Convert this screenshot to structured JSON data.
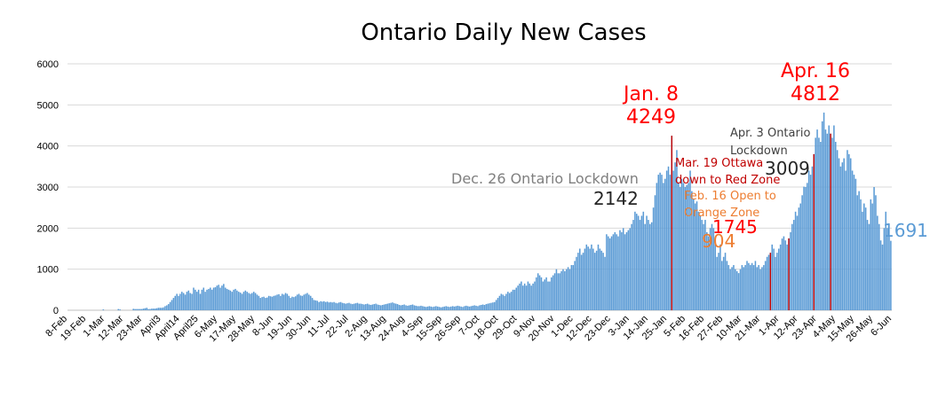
{
  "chart_data": {
    "type": "bar",
    "title": "Ontario Daily New Cases",
    "xlabel": "",
    "ylabel": "",
    "ylim": [
      0,
      6000
    ],
    "yticks": [
      0,
      1000,
      2000,
      3000,
      4000,
      5000,
      6000
    ],
    "grid": true,
    "legend": "none",
    "x_start": "8-Feb",
    "x_end": "6-Jun",
    "xtick_labels": [
      "8-Feb",
      "19-Feb",
      "1-Mar",
      "12-Mar",
      "23-Mar",
      "April3",
      "April14",
      "April25",
      "6-May",
      "17-May",
      "28-May",
      "8-Jun",
      "19-Jun",
      "30-Jun",
      "11-Jul",
      "22-Jul",
      "2-Aug",
      "13-Aug",
      "24-Aug",
      "4-Sep",
      "15-Sep",
      "26-Sep",
      "7-Oct",
      "18-Oct",
      "29-Oct",
      "9-Nov",
      "20-Nov",
      "1-Dec",
      "12-Dec",
      "23-Dec",
      "3-Jan",
      "14-Jan",
      "25-Jan",
      "5-Feb",
      "16-Feb",
      "27-Feb",
      "10-Mar",
      "21-Mar",
      "1-Apr",
      "12-Apr",
      "23-Apr",
      "4-May",
      "15-May",
      "26-May",
      "6-Jun"
    ],
    "series": [
      {
        "color": "#5b9bd5",
        "values": [
          0,
          0,
          0,
          0,
          0,
          0,
          0,
          0,
          0,
          0,
          0,
          0,
          0,
          0,
          0,
          0,
          0,
          0,
          0,
          0,
          0,
          20,
          0,
          0,
          0,
          0,
          0,
          0,
          0,
          0,
          30,
          20,
          0,
          0,
          0,
          0,
          0,
          0,
          0,
          35,
          30,
          30,
          30,
          30,
          30,
          40,
          50,
          60,
          30,
          30,
          40,
          40,
          40,
          50,
          60,
          60,
          60,
          70,
          100,
          120,
          150,
          200,
          250,
          300,
          350,
          400,
          350,
          400,
          450,
          420,
          380,
          450,
          480,
          420,
          400,
          550,
          500,
          450,
          500,
          400,
          500,
          550,
          450,
          500,
          520,
          550,
          500,
          550,
          560,
          600,
          620,
          550,
          600,
          640,
          550,
          520,
          500,
          480,
          450,
          500,
          520,
          480,
          450,
          430,
          400,
          450,
          480,
          450,
          420,
          400,
          420,
          450,
          420,
          380,
          350,
          300,
          320,
          330,
          300,
          310,
          350,
          340,
          330,
          350,
          360,
          380,
          390,
          350,
          400,
          380,
          420,
          400,
          350,
          300,
          330,
          320,
          340,
          380,
          400,
          360,
          350,
          380,
          400,
          420,
          380,
          350,
          300,
          250,
          240,
          230,
          200,
          220,
          210,
          220,
          200,
          210,
          190,
          200,
          190,
          200,
          180,
          170,
          190,
          200,
          180,
          170,
          160,
          170,
          180,
          160,
          150,
          160,
          170,
          180,
          160,
          160,
          150,
          140,
          150,
          160,
          140,
          130,
          140,
          150,
          160,
          140,
          130,
          120,
          130,
          140,
          150,
          160,
          170,
          180,
          190,
          170,
          160,
          150,
          130,
          120,
          130,
          140,
          120,
          110,
          120,
          130,
          140,
          120,
          110,
          100,
          100,
          110,
          100,
          90,
          80,
          90,
          100,
          90,
          80,
          90,
          100,
          90,
          80,
          70,
          80,
          90,
          100,
          90,
          80,
          90,
          100,
          90,
          100,
          110,
          100,
          90,
          80,
          100,
          110,
          100,
          90,
          100,
          110,
          120,
          110,
          100,
          120,
          130,
          140,
          130,
          150,
          160,
          170,
          180,
          190,
          200,
          250,
          300,
          350,
          400,
          380,
          350,
          400,
          450,
          420,
          450,
          500,
          500,
          550,
          600,
          650,
          700,
          600,
          650,
          600,
          700,
          650,
          600,
          650,
          700,
          800,
          900,
          850,
          800,
          700,
          750,
          800,
          700,
          700,
          800,
          850,
          900,
          1000,
          900,
          900,
          950,
          1000,
          950,
          1000,
          1050,
          1000,
          1100,
          1100,
          1200,
          1300,
          1400,
          1500,
          1350,
          1400,
          1500,
          1600,
          1550,
          1500,
          1600,
          1500,
          1400,
          1450,
          1600,
          1500,
          1450,
          1400,
          1300,
          1850,
          1800,
          1750,
          1800,
          1850,
          1900,
          1850,
          1800,
          1950,
          1900,
          2000,
          1850,
          1900,
          1950,
          2000,
          2100,
          2200,
          2400,
          2350,
          2300,
          2200,
          2300,
          2400,
          2100,
          2300,
          2200,
          2100,
          2142,
          2500,
          2800,
          3100,
          3300,
          3350,
          3300,
          3100,
          3200,
          3400,
          3500,
          3300,
          4249,
          3400,
          3600,
          3900,
          3100,
          3000,
          3200,
          3100,
          3000,
          3050,
          3100,
          3400,
          2900,
          2700,
          2600,
          2650,
          2400,
          2300,
          2200,
          2100,
          2200,
          1900,
          1800,
          2000,
          2100,
          2000,
          1700,
          1300,
          1400,
          1600,
          1200,
          1300,
          1400,
          1200,
          1100,
          1000,
          1050,
          1100,
          1000,
          950,
          904,
          1000,
          1100,
          1050,
          1100,
          1200,
          1150,
          1100,
          1150,
          1100,
          1200,
          1050,
          1100,
          1000,
          1050,
          1100,
          1200,
          1300,
          1350,
          1400,
          1600,
          1500,
          1300,
          1400,
          1500,
          1600,
          1745,
          1800,
          1700,
          1600,
          1750,
          1900,
          2100,
          2200,
          2400,
          2300,
          2500,
          2600,
          2800,
          3009,
          3000,
          3100,
          3400,
          3300,
          3500,
          3800,
          4200,
          4400,
          4200,
          4100,
          4600,
          4812,
          4400,
          4300,
          4500,
          4300,
          4200,
          4500,
          4100,
          3900,
          3700,
          3500,
          3600,
          3700,
          3400,
          3900,
          3800,
          3700,
          3400,
          3300,
          3200,
          2800,
          2900,
          2700,
          2400,
          2600,
          2500,
          2200,
          2100,
          2700,
          2600,
          3000,
          2800,
          2300,
          2100,
          1700,
          1600,
          2000,
          2400,
          2000,
          1800,
          1691
        ]
      }
    ],
    "marker_lines": [
      {
        "index": 361,
        "color": "#c00000"
      },
      {
        "index": 420,
        "color": "#c00000"
      },
      {
        "index": 431,
        "color": "#c00000"
      },
      {
        "index": 446,
        "color": "#c00000"
      },
      {
        "index": 456,
        "color": "#c00000"
      }
    ],
    "annotations": [
      {
        "text": "Jan. 8",
        "color": "#ff0000",
        "size": 22
      },
      {
        "text": "4249",
        "color": "#ff0000",
        "size": 22
      },
      {
        "text": "Apr. 16",
        "color": "#ff0000",
        "size": 22
      },
      {
        "text": "4812",
        "color": "#ff0000",
        "size": 22
      },
      {
        "text": "Apr. 3 Ontario",
        "color": "#404040",
        "size": 13
      },
      {
        "text": "Lockdown",
        "color": "#404040",
        "size": 13
      },
      {
        "text": "Dec. 26 Ontario Lockdown",
        "color": "#7f7f7f",
        "size": 16
      },
      {
        "text": "2142",
        "color": "#262626",
        "size": 20
      },
      {
        "text": "Mar. 19 Ottawa",
        "color": "#c00000",
        "size": 13
      },
      {
        "text": "down to Red Zone",
        "color": "#c00000",
        "size": 13
      },
      {
        "text": "3009",
        "color": "#262626",
        "size": 20
      },
      {
        "text": "Feb. 16 Open to",
        "color": "#ed7d31",
        "size": 13
      },
      {
        "text": "Orange Zone",
        "color": "#ed7d31",
        "size": 13
      },
      {
        "text": "1745",
        "color": "#ff0000",
        "size": 20
      },
      {
        "text": "904",
        "color": "#ed7d31",
        "size": 20
      },
      {
        "text": "1691",
        "color": "#5b9bd5",
        "size": 20
      }
    ]
  }
}
